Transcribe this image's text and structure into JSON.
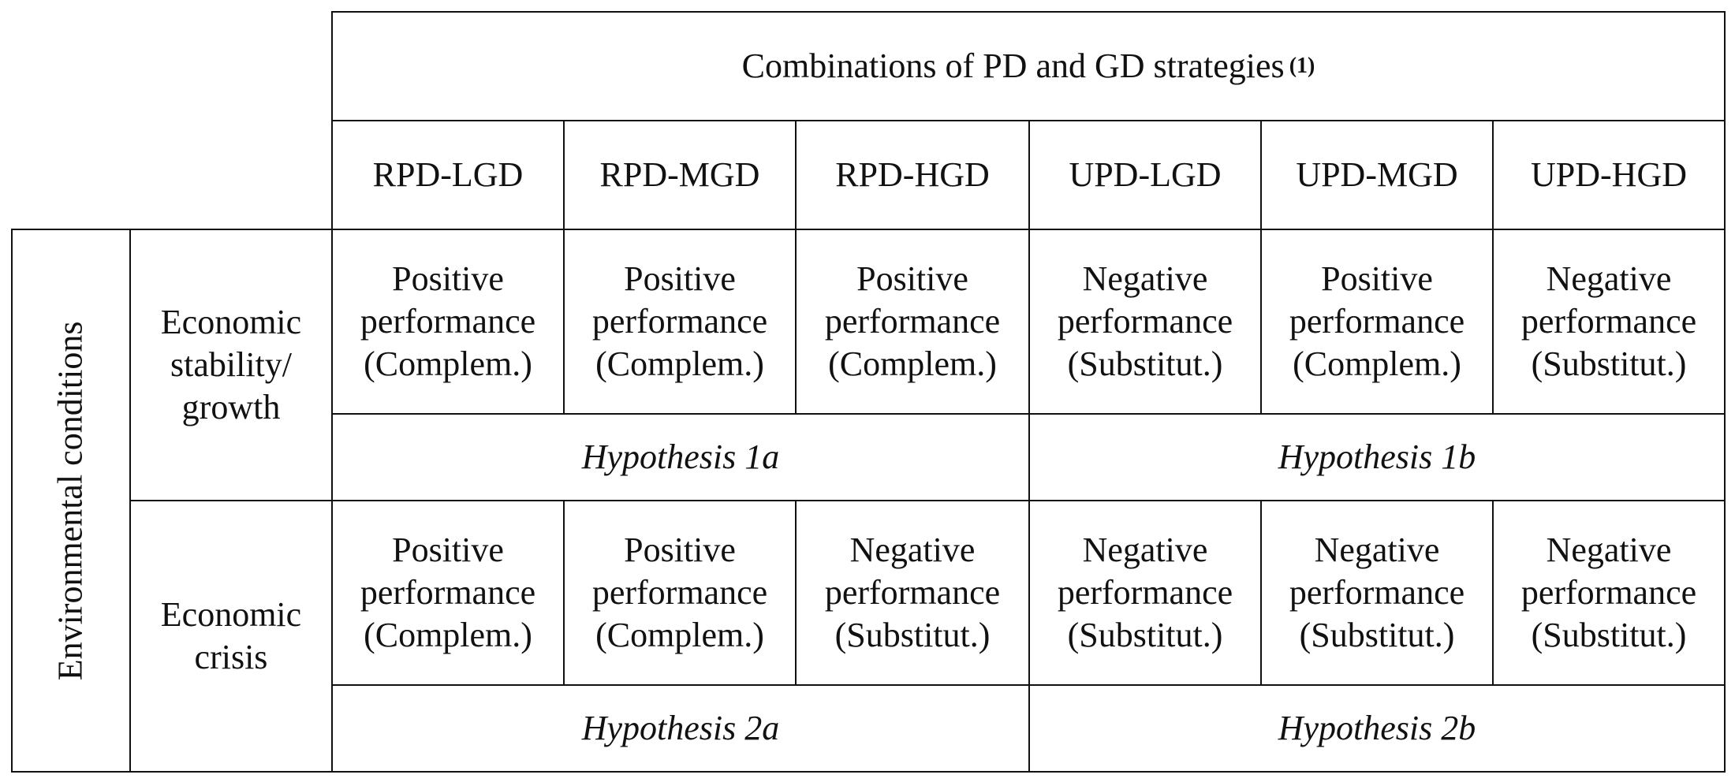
{
  "table": {
    "title": "Combinations of PD and GD strategies",
    "title_note": "(1)",
    "columns": [
      "RPD-LGD",
      "RPD-MGD",
      "RPD-HGD",
      "UPD-LGD",
      "UPD-MGD",
      "UPD-HGD"
    ],
    "row_group_label": "Environmental conditions",
    "rows": [
      {
        "label_lines": [
          "Economic",
          "stability/",
          "growth"
        ],
        "cells": [
          [
            "Positive",
            "performance",
            "(Complem.)"
          ],
          [
            "Positive",
            "performance",
            "(Complem.)"
          ],
          [
            "Positive",
            "performance",
            "(Complem.)"
          ],
          [
            "Negative",
            "performance",
            "(Substitut.)"
          ],
          [
            "Positive",
            "performance",
            "(Complem.)"
          ],
          [
            "Negative",
            "performance",
            "(Substitut.)"
          ]
        ],
        "hypotheses": [
          "Hypothesis 1a",
          "Hypothesis 1b"
        ]
      },
      {
        "label_lines": [
          "Economic",
          "crisis"
        ],
        "cells": [
          [
            "Positive",
            "performance",
            "(Complem.)"
          ],
          [
            "Positive",
            "performance",
            "(Complem.)"
          ],
          [
            "Negative",
            "performance",
            "(Substitut.)"
          ],
          [
            "Negative",
            "performance",
            "(Substitut.)"
          ],
          [
            "Negative",
            "performance",
            "(Substitut.)"
          ],
          [
            "Negative",
            "performance",
            "(Substitut.)"
          ]
        ],
        "hypotheses": [
          "Hypothesis 2a",
          "Hypothesis 2b"
        ]
      }
    ]
  }
}
